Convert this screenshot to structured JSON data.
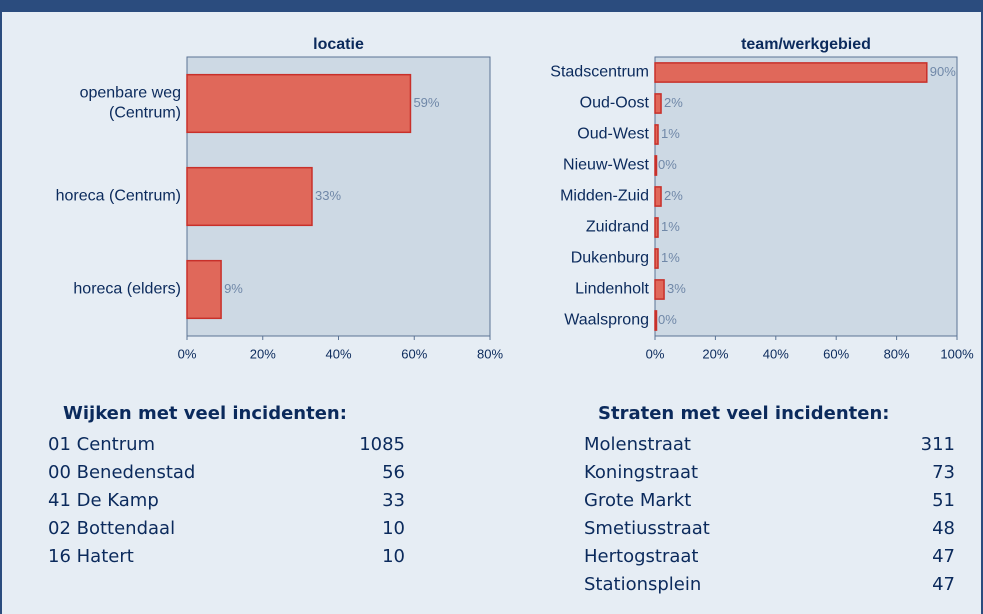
{
  "chart_data": [
    {
      "type": "bar",
      "orientation": "horizontal",
      "title": "locatie",
      "categories": [
        "openbare weg\n(Centrum)",
        "horeca (Centrum)",
        "horeca (elders)"
      ],
      "values": [
        59,
        33,
        9
      ],
      "value_labels": [
        "59%",
        "33%",
        "9%"
      ],
      "color": "#e0685a",
      "xlim": [
        0,
        80
      ],
      "xticks": [
        {
          "value": 0,
          "label": "0%"
        },
        {
          "value": 20,
          "label": "20%"
        },
        {
          "value": 40,
          "label": "40%"
        },
        {
          "value": 60,
          "label": "60%"
        },
        {
          "value": 80,
          "label": "80%"
        }
      ]
    },
    {
      "type": "bar",
      "orientation": "horizontal",
      "title": "team/werkgebied",
      "categories": [
        "Stadscentrum",
        "Oud-Oost",
        "Oud-West",
        "Nieuw-West",
        "Midden-Zuid",
        "Zuidrand",
        "Dukenburg",
        "Lindenholt",
        "Waalsprong"
      ],
      "values": [
        90,
        2,
        1,
        0,
        2,
        1,
        1,
        3,
        0
      ],
      "value_labels": [
        "90%",
        "2%",
        "1%",
        "0%",
        "2%",
        "1%",
        "1%",
        "3%",
        "0%"
      ],
      "color": "#e0685a",
      "xlim": [
        0,
        100
      ],
      "xticks": [
        {
          "value": 0,
          "label": "0%"
        },
        {
          "value": 20,
          "label": "20%"
        },
        {
          "value": 40,
          "label": "40%"
        },
        {
          "value": 60,
          "label": "60%"
        },
        {
          "value": 80,
          "label": "80%"
        },
        {
          "value": 100,
          "label": "100%"
        }
      ]
    }
  ],
  "tables": [
    {
      "title": "Wijken met veel incidenten:",
      "rows": [
        [
          "01 Centrum",
          "1085"
        ],
        [
          "00 Benedenstad",
          "56"
        ],
        [
          "41 De Kamp",
          "33"
        ],
        [
          "02 Bottendaal",
          "10"
        ],
        [
          "16 Hatert",
          "10"
        ]
      ]
    },
    {
      "title": "Straten met veel incidenten:",
      "rows": [
        [
          "Molenstraat",
          "311"
        ],
        [
          "Koningstraat",
          "73"
        ],
        [
          "Grote Markt",
          "51"
        ],
        [
          "Smetiusstraat",
          "48"
        ],
        [
          "Hertogstraat",
          "47"
        ],
        [
          "Stationsplein",
          "47"
        ]
      ]
    }
  ]
}
